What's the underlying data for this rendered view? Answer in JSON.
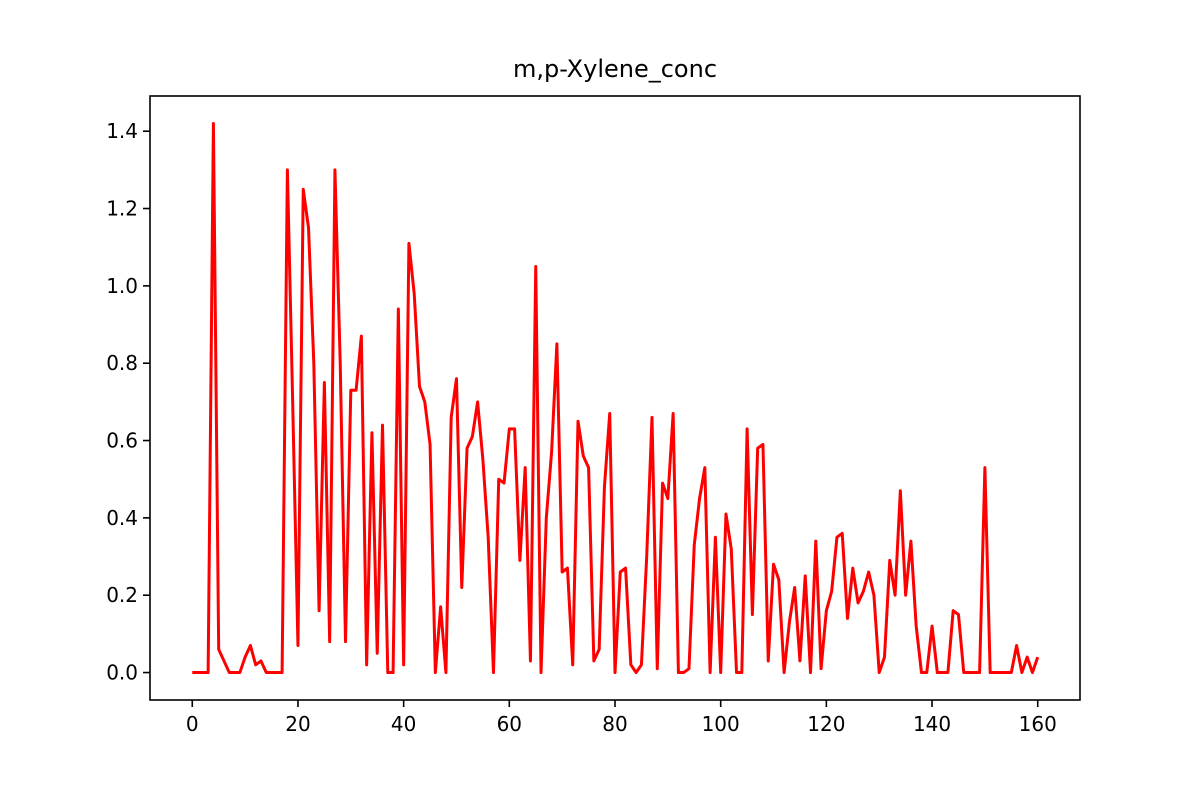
{
  "chart_data": {
    "type": "line",
    "title": "m,p-Xylene_conc",
    "xlabel": "",
    "ylabel": "",
    "xlim": [
      -8,
      168
    ],
    "ylim": [
      -0.071,
      1.491
    ],
    "grid": false,
    "legend": "none",
    "line_color": "#ff0000",
    "x_ticks": [
      0,
      20,
      40,
      60,
      80,
      100,
      120,
      140,
      160
    ],
    "x_tick_labels": [
      "0",
      "20",
      "40",
      "60",
      "80",
      "100",
      "120",
      "140",
      "160"
    ],
    "y_ticks": [
      0.0,
      0.2,
      0.4,
      0.6,
      0.8,
      1.0,
      1.2,
      1.4
    ],
    "y_tick_labels": [
      "0.0",
      "0.2",
      "0.4",
      "0.6",
      "0.8",
      "1.0",
      "1.2",
      "1.4"
    ],
    "series": [
      {
        "x": [
          0,
          1,
          2,
          3,
          4,
          5,
          6,
          7,
          8,
          9,
          10,
          11,
          12,
          13,
          14,
          15,
          16,
          17,
          18,
          19,
          20,
          21,
          22,
          23,
          24,
          25,
          26,
          27,
          28,
          29,
          30,
          31,
          32,
          33,
          34,
          35,
          36,
          37,
          38,
          39,
          40,
          41,
          42,
          43,
          44,
          45,
          46,
          47,
          48,
          49,
          50,
          51,
          52,
          53,
          54,
          55,
          56,
          57,
          58,
          59,
          60,
          61,
          62,
          63,
          64,
          65,
          66,
          67,
          68,
          69,
          70,
          71,
          72,
          73,
          74,
          75,
          76,
          77,
          78,
          79,
          80,
          81,
          82,
          83,
          84,
          85,
          86,
          87,
          88,
          89,
          90,
          91,
          92,
          93,
          94,
          95,
          96,
          97,
          98,
          99,
          100,
          101,
          102,
          103,
          104,
          105,
          106,
          107,
          108,
          109,
          110,
          111,
          112,
          113,
          114,
          115,
          116,
          117,
          118,
          119,
          120,
          121,
          122,
          123,
          124,
          125,
          126,
          127,
          128,
          129,
          130,
          131,
          132,
          133,
          134,
          135,
          136,
          137,
          138,
          139,
          140,
          141,
          142,
          143,
          144,
          145,
          146,
          147,
          148,
          149,
          150,
          151,
          152,
          153,
          154,
          155,
          156,
          157,
          158,
          159,
          160
        ],
        "values": [
          0,
          0,
          0,
          0,
          1.42,
          0.06,
          0.03,
          0,
          0,
          0,
          0.04,
          0.07,
          0.02,
          0.03,
          0,
          0,
          0,
          0,
          1.3,
          0.7,
          0.07,
          1.25,
          1.15,
          0.8,
          0.16,
          0.75,
          0.08,
          1.3,
          0.8,
          0.08,
          0.73,
          0.73,
          0.87,
          0.02,
          0.62,
          0.05,
          0.64,
          0,
          0,
          0.94,
          0.02,
          1.11,
          0.98,
          0.74,
          0.7,
          0.59,
          0,
          0.17,
          0,
          0.66,
          0.76,
          0.22,
          0.58,
          0.61,
          0.7,
          0.55,
          0.35,
          0,
          0.5,
          0.49,
          0.63,
          0.63,
          0.29,
          0.53,
          0.03,
          1.05,
          0,
          0.4,
          0.57,
          0.85,
          0.26,
          0.27,
          0.02,
          0.65,
          0.56,
          0.53,
          0.03,
          0.06,
          0.48,
          0.67,
          0,
          0.26,
          0.27,
          0.02,
          0,
          0.02,
          0.3,
          0.66,
          0.01,
          0.49,
          0.45,
          0.67,
          0,
          0,
          0.01,
          0.33,
          0.45,
          0.53,
          0,
          0.35,
          0,
          0.41,
          0.32,
          0,
          0,
          0.63,
          0.15,
          0.58,
          0.59,
          0.03,
          0.28,
          0.24,
          0,
          0.13,
          0.22,
          0.03,
          0.25,
          0,
          0.34,
          0.01,
          0.16,
          0.21,
          0.35,
          0.36,
          0.14,
          0.27,
          0.18,
          0.21,
          0.26,
          0.2,
          0,
          0.04,
          0.29,
          0.2,
          0.47,
          0.2,
          0.34,
          0.12,
          0,
          0,
          0.12,
          0,
          0,
          0,
          0.16,
          0.15,
          0,
          0,
          0,
          0,
          0.53,
          0,
          0,
          0,
          0,
          0,
          0.07,
          0,
          0.04,
          0,
          0.04
        ]
      }
    ]
  }
}
